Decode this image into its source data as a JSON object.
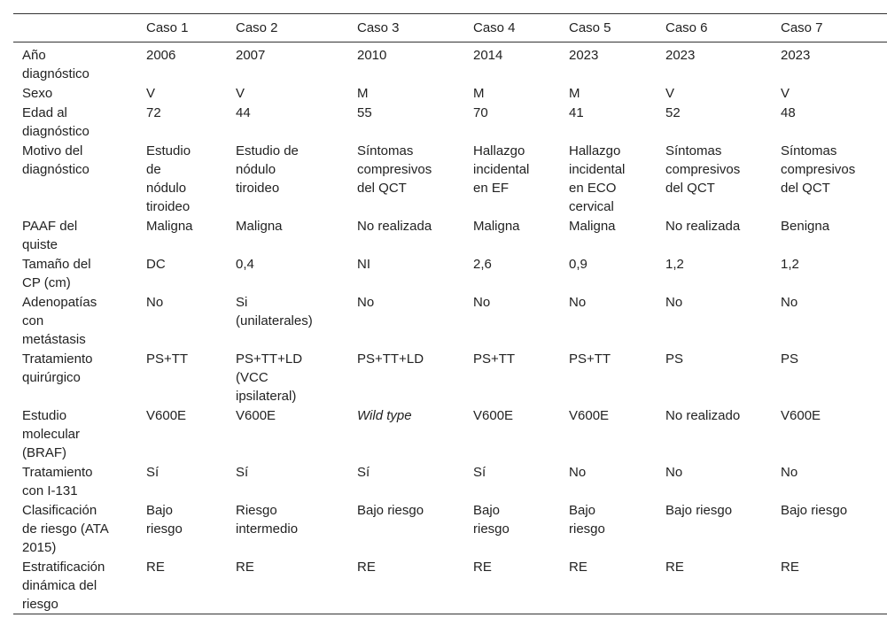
{
  "table": {
    "header": [
      "Caso 1",
      "Caso 2",
      "Caso 3",
      "Caso 4",
      "Caso 5",
      "Caso 6",
      "Caso 7"
    ],
    "rows": [
      [
        "Año diagnóstico",
        "2006",
        "2007",
        "2010",
        "2014",
        "2023",
        "2023",
        "2023"
      ],
      [
        "Sexo",
        "V",
        "V",
        "M",
        "M",
        "M",
        "V",
        "V"
      ],
      [
        "Edad al diagnóstico",
        "72",
        "44",
        "55",
        "70",
        "41",
        "52",
        "48"
      ],
      [
        "Motivo del diagnóstico",
        "Estudio de nódulo tiroideo",
        "Estudio de nódulo tiroideo",
        "Síntomas compresivos del QCT",
        "Hallazgo incidental en EF",
        "Hallazgo incidental en ECO cervical",
        "Síntomas compresivos del QCT",
        "Síntomas compresivos del QCT"
      ],
      [
        "PAAF del quiste",
        "Maligna",
        "Maligna",
        "No realizada",
        "Maligna",
        "Maligna",
        "No realizada",
        "Benigna"
      ],
      [
        "Tamaño del CP (cm)",
        "DC",
        "0,4",
        "NI",
        "2,6",
        "0,9",
        "1,2",
        "1,2"
      ],
      [
        "Adenopatías con metástasis",
        "No",
        "Si (unilaterales)",
        "No",
        "No",
        "No",
        "No",
        "No"
      ],
      [
        "Tratamiento quirúrgico",
        "PS+TT",
        "PS+TT+LD (VCC ipsilateral)",
        "PS+TT+LD",
        "PS+TT",
        "PS+TT",
        "PS",
        "PS"
      ],
      [
        "Estudio molecular (BRAF)",
        "V600E",
        "V600E",
        "Wild type",
        "V600E",
        "V600E",
        "No realizado",
        "V600E"
      ],
      [
        "Tratamiento con I-131",
        "Sí",
        "Sí",
        "Sí",
        "Sí",
        "No",
        "No",
        "No"
      ],
      [
        "Clasificación de riesgo (ATA 2015)",
        "Bajo riesgo",
        "Riesgo intermedio",
        "Bajo riesgo",
        "Bajo riesgo",
        "Bajo riesgo",
        "Bajo riesgo",
        "Bajo riesgo"
      ],
      [
        "Estratificación dinámica del riesgo",
        "RE",
        "RE",
        "RE",
        "RE",
        "RE",
        "RE",
        "RE"
      ]
    ]
  }
}
